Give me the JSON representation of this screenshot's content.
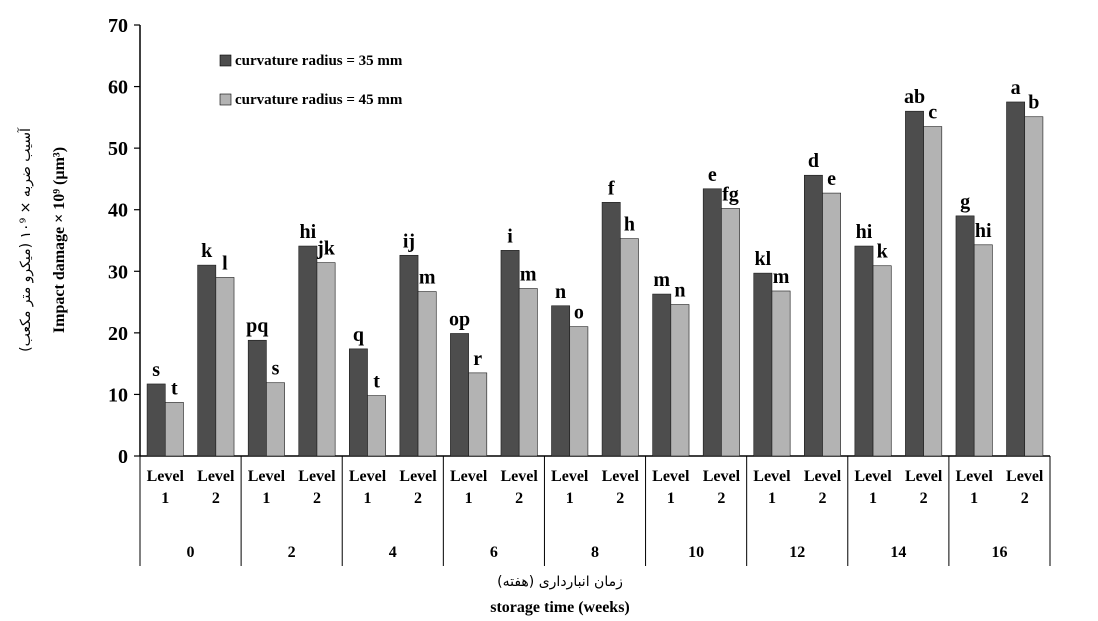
{
  "chart_data": {
    "type": "bar",
    "title": "",
    "ylabel": "Impact damage × 10⁹ (µm³)",
    "ylabel_persian": "آسیب ضربه × ۱۰⁹ (میکرو متر مکعب)",
    "xlabel": "storage time (weeks)",
    "xlabel_persian": "زمان انبارداری (هفته)",
    "ylim": [
      0,
      70
    ],
    "yticks": [
      "0",
      "10",
      "20",
      "30",
      "40",
      "50",
      "60",
      "70"
    ],
    "grid": false,
    "legend_position": "top-left",
    "weeks": [
      "0",
      "2",
      "4",
      "6",
      "8",
      "10",
      "12",
      "14",
      "16"
    ],
    "levels": [
      {
        "line1": "Level",
        "line2": "1"
      },
      {
        "line1": "Level",
        "line2": "2"
      }
    ],
    "categories": [
      "0 Level 1",
      "0 Level 2",
      "2 Level 1",
      "2 Level 2",
      "4 Level 1",
      "4 Level 2",
      "6 Level 1",
      "6 Level 2",
      "8 Level 1",
      "8 Level 2",
      "10 Level 1",
      "10 Level 2",
      "12 Level 1",
      "12 Level 2",
      "14 Level 1",
      "14 Level 2",
      "16 Level 1",
      "16 Level 2"
    ],
    "series": [
      {
        "name": "curvature radius = 35 mm",
        "color": "#4d4d4d",
        "values": [
          11.7,
          31.0,
          18.8,
          34.1,
          17.4,
          32.6,
          19.9,
          33.4,
          24.4,
          41.2,
          26.3,
          43.4,
          29.7,
          45.6,
          34.1,
          56.0,
          39.0,
          57.5
        ],
        "labels": [
          "s",
          "k",
          "pq",
          "hi",
          "q",
          "ij",
          "op",
          "i",
          "n",
          "f",
          "m",
          "e",
          "kl",
          "d",
          "hi",
          "ab",
          "g",
          "a"
        ]
      },
      {
        "name": "curvature radius = 45 mm",
        "color": "#b3b3b3",
        "values": [
          8.7,
          29.0,
          11.9,
          31.4,
          9.8,
          26.7,
          13.5,
          27.2,
          21.0,
          35.3,
          24.6,
          40.2,
          26.8,
          42.7,
          30.9,
          53.5,
          34.3,
          55.1
        ],
        "labels": [
          "t",
          "l",
          "s",
          "jk",
          "t",
          "m",
          "r",
          "m",
          "o",
          "h",
          "n",
          "fg",
          "m",
          "e",
          "k",
          "c",
          "hi",
          "b"
        ]
      }
    ]
  }
}
